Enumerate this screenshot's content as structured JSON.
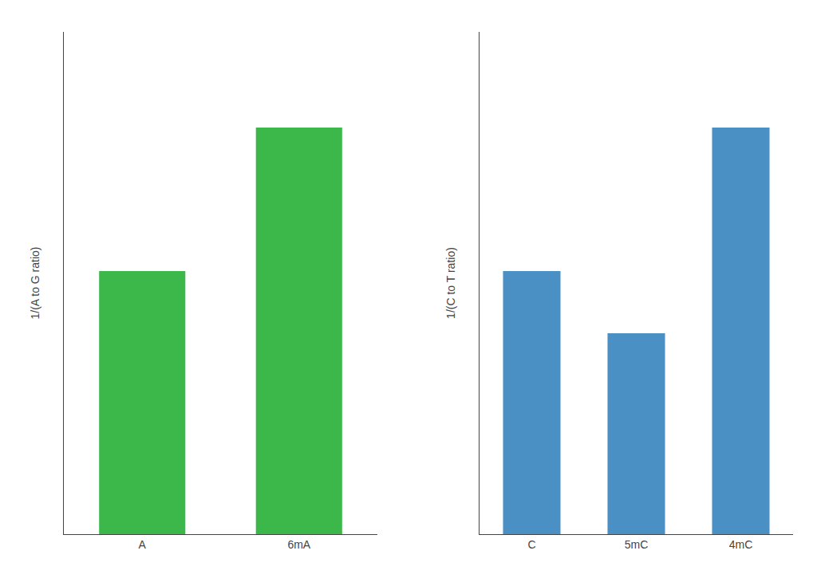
{
  "chart_data": [
    {
      "type": "bar",
      "categories": [
        "A",
        "6mA"
      ],
      "values": [
        0.55,
        0.85
      ],
      "color": "#3cb84a",
      "ylabel": "1/(A to G ratio)",
      "ylim": [
        0,
        1.05
      ],
      "yticks": [],
      "tick_labels": "x",
      "grid": false
    },
    {
      "type": "bar",
      "categories": [
        "C",
        "5mC",
        "4mC"
      ],
      "values": [
        0.55,
        0.42,
        0.85
      ],
      "color": "#4a90c4",
      "ylabel": "1/(C to T ratio)",
      "ylim": [
        0,
        1.05
      ],
      "yticks": [],
      "tick_labels": "x",
      "grid": false
    }
  ]
}
